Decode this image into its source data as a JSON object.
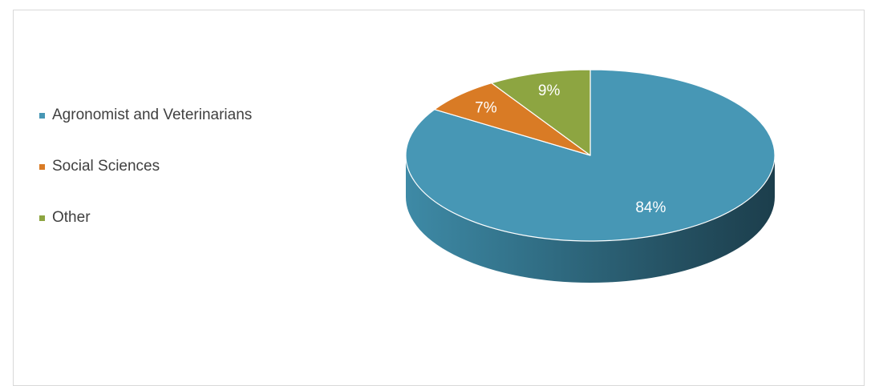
{
  "chart_data": {
    "type": "pie",
    "three_d": true,
    "legend_position": "left",
    "slices": [
      {
        "label": "Agronomist and Veterinarians",
        "value": 84,
        "display": "84%",
        "color": "#4797b5"
      },
      {
        "label": "Social Sciences",
        "value": 7,
        "display": "7%",
        "color": "#d97b25"
      },
      {
        "label": "Other",
        "value": 9,
        "display": "9%",
        "color": "#8da541"
      }
    ]
  }
}
